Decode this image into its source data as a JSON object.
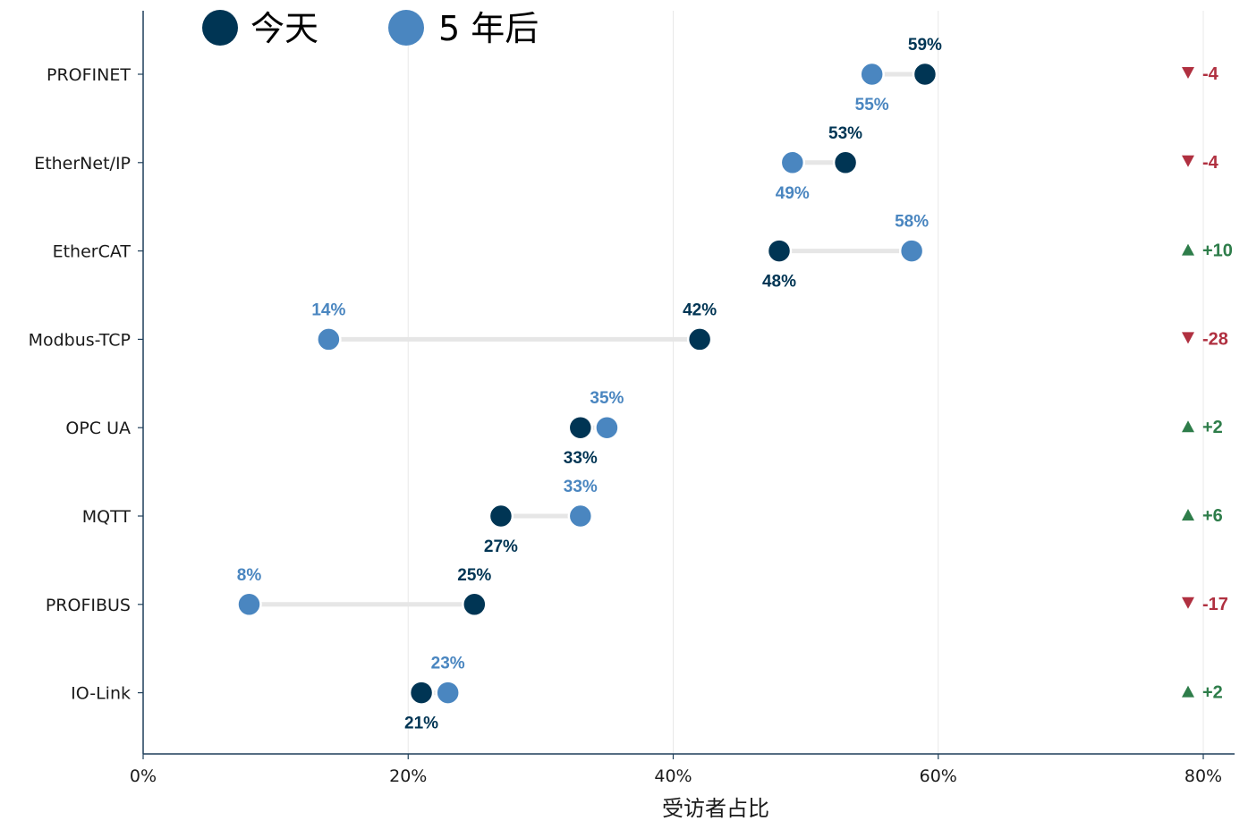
{
  "chart_data": {
    "type": "dumbbell",
    "xlabel": "受访者占比",
    "xlim": [
      0,
      82
    ],
    "xticks": [
      0,
      20,
      40,
      60,
      80
    ],
    "tick_suffix": "%",
    "grid": "vertical",
    "legend_position": "top-left",
    "colors": {
      "today": "#003554",
      "future": "#4a86c0",
      "connector": "#e6e6e6",
      "axis": "#1f3f5a",
      "grid": "#e8e8e8",
      "up": "#2e7d4a",
      "down": "#b03040"
    },
    "series": [
      {
        "key": "today",
        "name": "今天"
      },
      {
        "key": "future",
        "name": "5 年后"
      }
    ],
    "categories": [
      "PROFINET",
      "EtherNet/IP",
      "EtherCAT",
      "Modbus-TCP",
      "OPC UA",
      "MQTT",
      "PROFIBUS",
      "IO-Link"
    ],
    "today": [
      59,
      53,
      48,
      42,
      33,
      27,
      25,
      21
    ],
    "future": [
      55,
      49,
      58,
      14,
      35,
      33,
      8,
      23
    ],
    "delta_labels": [
      "-4",
      "-4",
      "+10",
      "-28",
      "+2",
      "+6",
      "-17",
      "+2"
    ]
  }
}
